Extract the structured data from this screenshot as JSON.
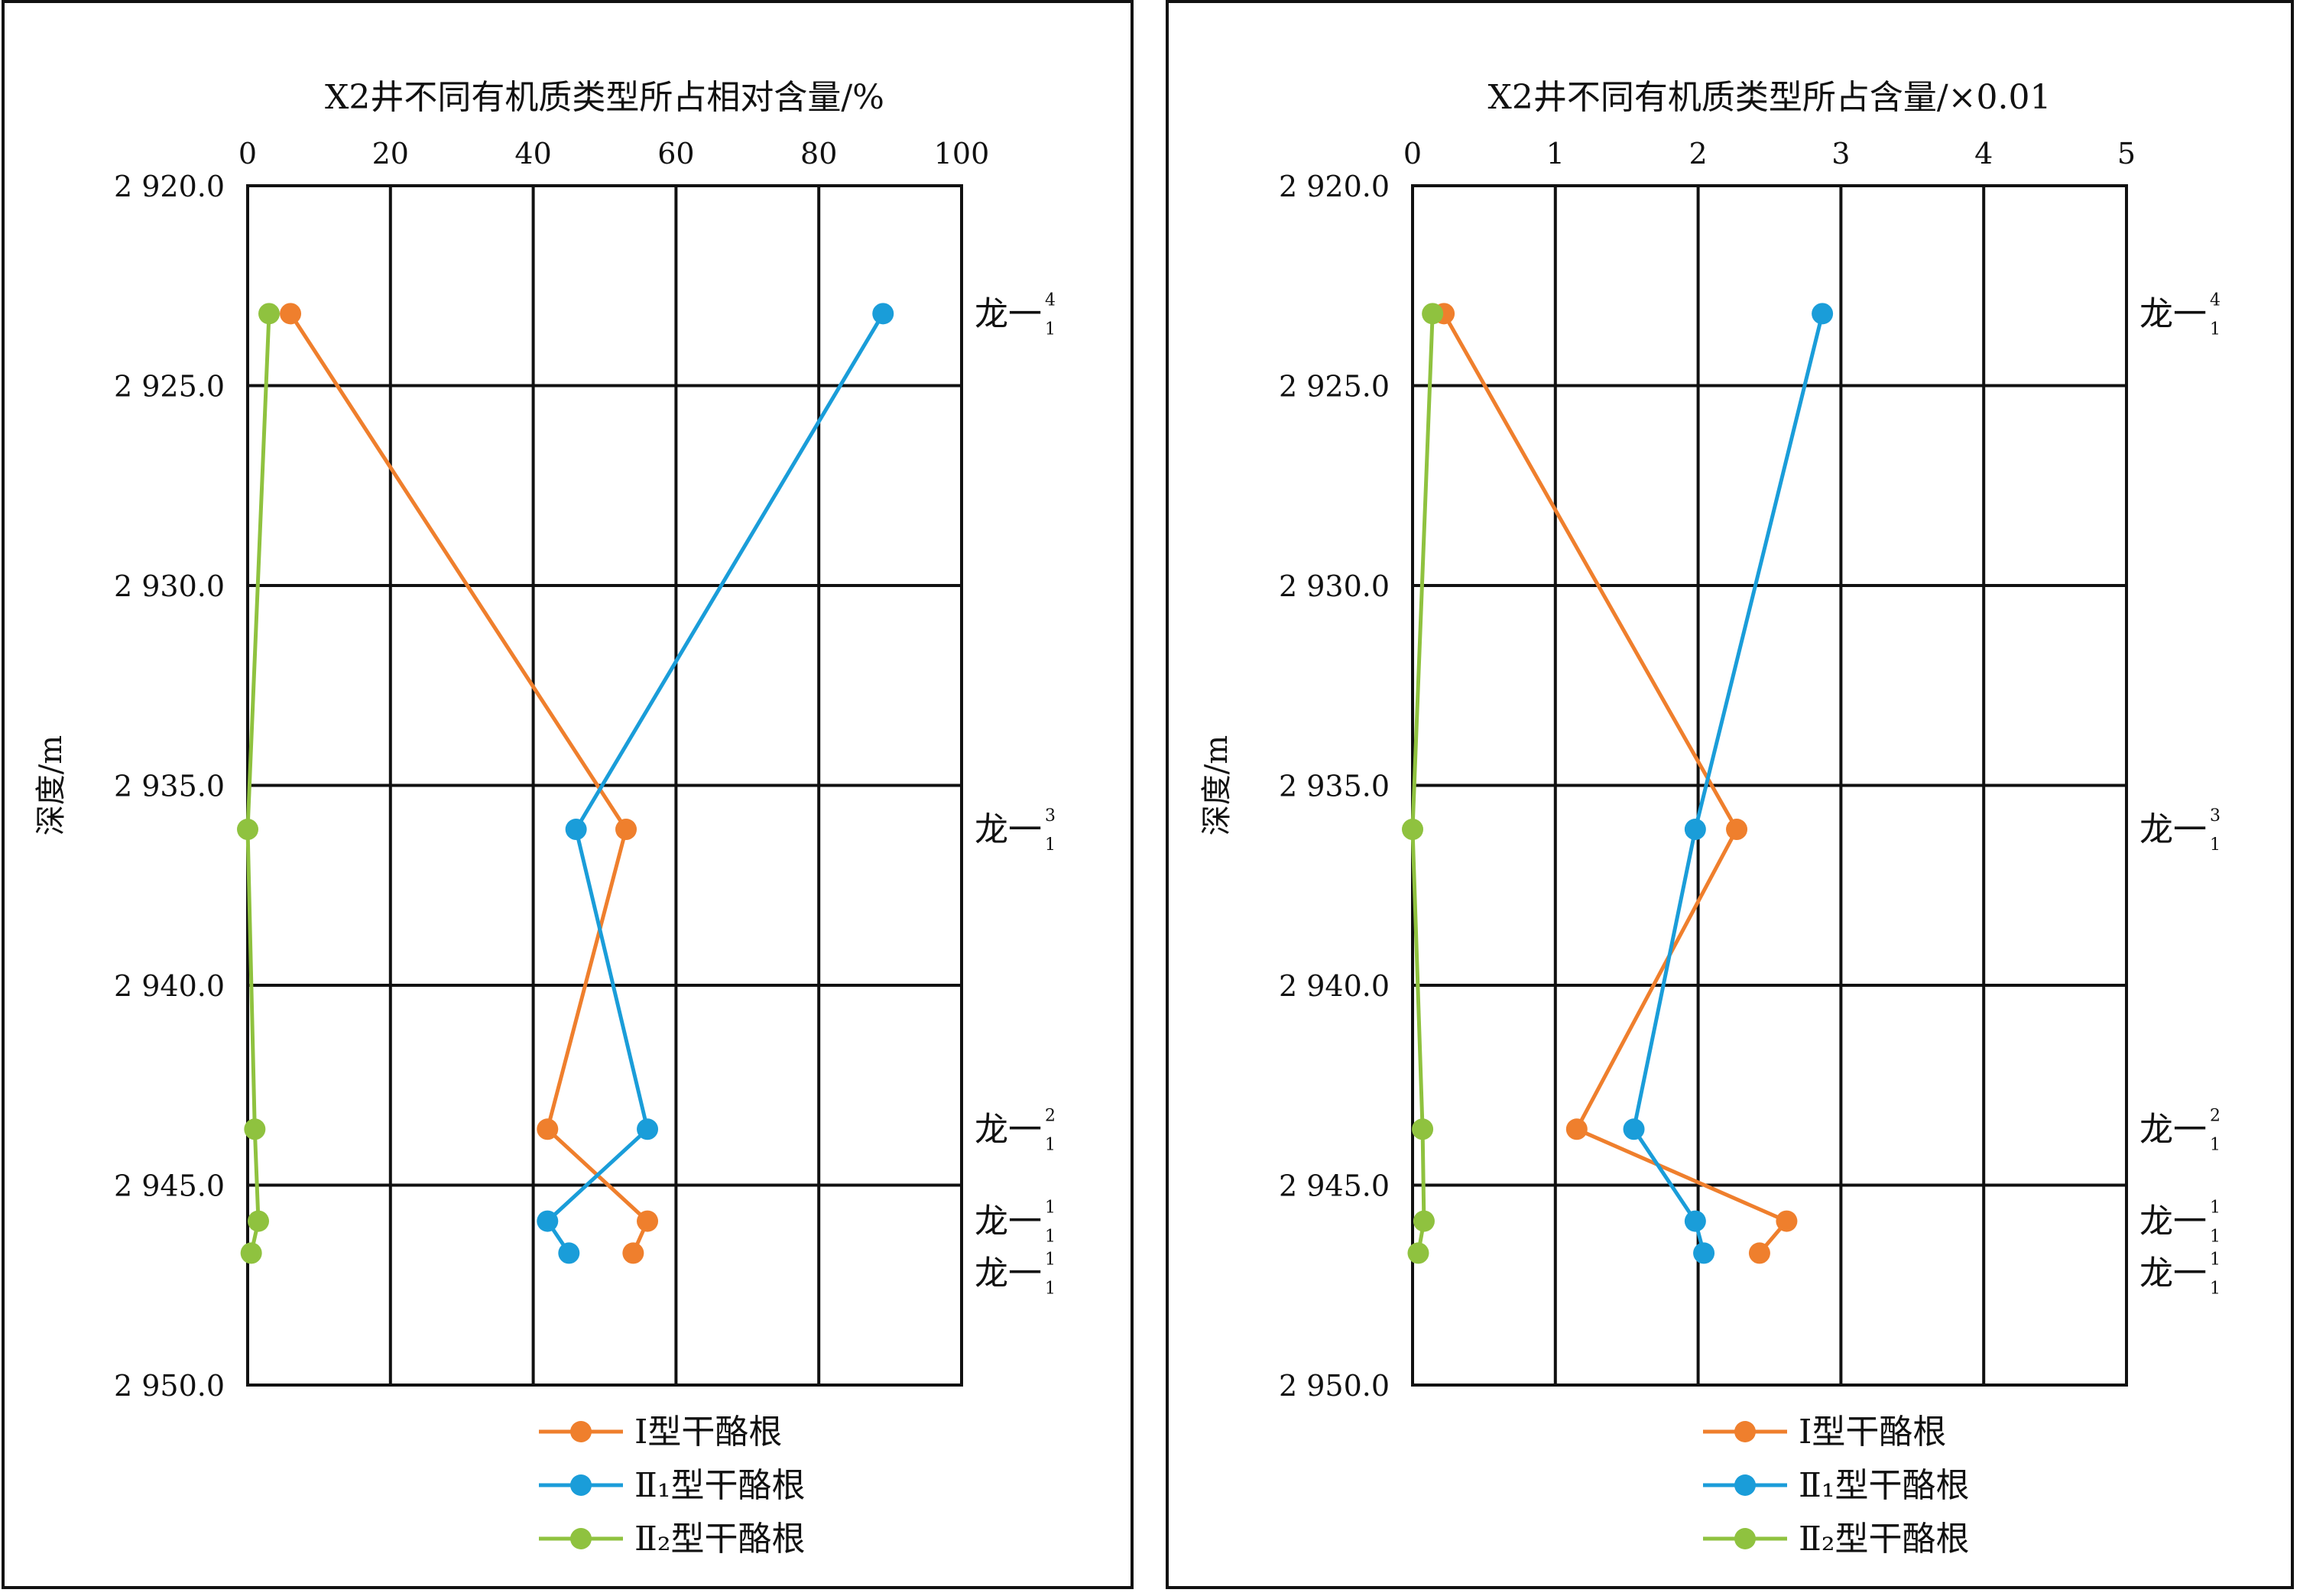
{
  "chart_data": [
    {
      "type": "line",
      "title": "X2井不同有机质类型所占相对含量/%",
      "ylabel": "深度/m",
      "xlim": [
        0,
        100
      ],
      "ylim": [
        2920,
        2950
      ],
      "y_inverted": true,
      "xticks": [
        0,
        20,
        40,
        60,
        80,
        100
      ],
      "yticks": [
        2920,
        2925,
        2930,
        2935,
        2940,
        2945,
        2950
      ],
      "xtick_labels": [
        "0",
        "20",
        "40",
        "60",
        "80",
        "100"
      ],
      "ytick_labels": [
        "2 920.0",
        "2 925.0",
        "2 930.0",
        "2 935.0",
        "2 940.0",
        "2 945.0",
        "2 950.0"
      ],
      "grid": true,
      "legend": "bottom",
      "series": [
        {
          "name": "Ⅰ型干酪根",
          "color": "#ef7f2d",
          "x": [
            6,
            53,
            42,
            56,
            54
          ],
          "y": [
            2923.2,
            2936.1,
            2943.6,
            2945.9,
            2946.7
          ]
        },
        {
          "name": "Ⅱ₁型干酪根",
          "color": "#1a9dd9",
          "x": [
            89,
            46,
            56,
            42,
            45
          ],
          "y": [
            2923.2,
            2936.1,
            2943.6,
            2945.9,
            2946.7
          ]
        },
        {
          "name": "Ⅱ₂型干酪根",
          "color": "#8fc23f",
          "x": [
            3,
            0,
            1,
            1.5,
            0.5
          ],
          "y": [
            2923.2,
            2936.1,
            2943.6,
            2945.9,
            2946.7
          ]
        }
      ],
      "strata_labels": [
        {
          "base": "龙一",
          "sup": "4",
          "sub": "1",
          "depth": 2923.2
        },
        {
          "base": "龙一",
          "sup": "3",
          "sub": "1",
          "depth": 2936.1
        },
        {
          "base": "龙一",
          "sup": "2",
          "sub": "1",
          "depth": 2943.6
        },
        {
          "base": "龙一",
          "sup": "1",
          "sub": "1",
          "depth": 2945.9
        },
        {
          "base": "龙一",
          "sup": "1",
          "sub": "1",
          "depth": 2947.2
        }
      ]
    },
    {
      "type": "line",
      "title": "X2井不同有机质类型所占含量/×0.01",
      "ylabel": "深度/m",
      "xlim": [
        0,
        5
      ],
      "ylim": [
        2920,
        2950
      ],
      "y_inverted": true,
      "xticks": [
        0,
        1,
        2,
        3,
        4,
        5
      ],
      "yticks": [
        2920,
        2925,
        2930,
        2935,
        2940,
        2945,
        2950
      ],
      "xtick_labels": [
        "0",
        "1",
        "2",
        "3",
        "4",
        "5"
      ],
      "ytick_labels": [
        "2 920.0",
        "2 925.0",
        "2 930.0",
        "2 935.0",
        "2 940.0",
        "2 945.0",
        "2 950.0"
      ],
      "grid": true,
      "legend": "bottom",
      "series": [
        {
          "name": "Ⅰ型干酪根",
          "color": "#ef7f2d",
          "x": [
            0.22,
            2.27,
            1.15,
            2.62,
            2.43
          ],
          "y": [
            2923.2,
            2936.1,
            2943.6,
            2945.9,
            2946.7
          ]
        },
        {
          "name": "Ⅱ₁型干酪根",
          "color": "#1a9dd9",
          "x": [
            2.87,
            1.98,
            1.55,
            1.98,
            2.04
          ],
          "y": [
            2923.2,
            2936.1,
            2943.6,
            2945.9,
            2946.7
          ]
        },
        {
          "name": "Ⅱ₂型干酪根",
          "color": "#8fc23f",
          "x": [
            0.14,
            0.0,
            0.07,
            0.08,
            0.04
          ],
          "y": [
            2923.2,
            2936.1,
            2943.6,
            2945.9,
            2946.7
          ]
        }
      ],
      "strata_labels": [
        {
          "base": "龙一",
          "sup": "4",
          "sub": "1",
          "depth": 2923.2
        },
        {
          "base": "龙一",
          "sup": "3",
          "sub": "1",
          "depth": 2936.1
        },
        {
          "base": "龙一",
          "sup": "2",
          "sub": "1",
          "depth": 2943.6
        },
        {
          "base": "龙一",
          "sup": "1",
          "sub": "1",
          "depth": 2945.9
        },
        {
          "base": "龙一",
          "sup": "1",
          "sub": "1",
          "depth": 2947.2
        }
      ]
    }
  ]
}
